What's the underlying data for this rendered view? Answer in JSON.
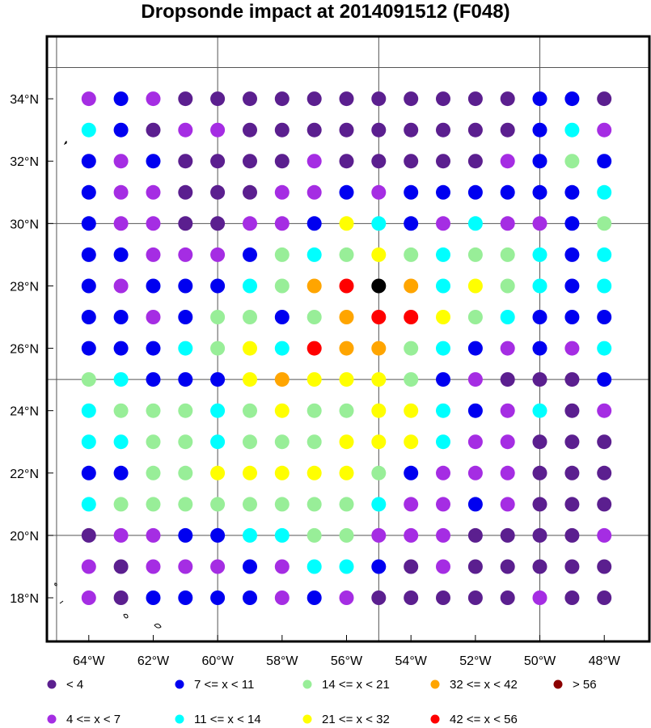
{
  "title": "Dropsonde impact at 2014091512 (F048)",
  "axes": {
    "x_ticks": [
      "64°W",
      "62°W",
      "60°W",
      "58°W",
      "56°W",
      "54°W",
      "52°W",
      "50°W",
      "48°W"
    ],
    "x_tick_values": [
      -64,
      -62,
      -60,
      -58,
      -56,
      -54,
      -52,
      -50,
      -48
    ],
    "y_ticks": [
      "34°N",
      "32°N",
      "30°N",
      "28°N",
      "26°N",
      "24°N",
      "22°N",
      "20°N",
      "18°N"
    ],
    "y_tick_values": [
      34,
      32,
      30,
      28,
      26,
      24,
      22,
      20,
      18
    ],
    "lon_range": [
      -65.3,
      -46.6
    ],
    "lat_range": [
      16.6,
      36.0
    ],
    "grid_lons": [
      -65,
      -60,
      -55,
      -50,
      -45
    ],
    "grid_lats": [
      35,
      30,
      25,
      20,
      15
    ],
    "grid": true
  },
  "colors": {
    "lt4": "#5b1f8f",
    "4to7": "#a52de3",
    "7to11": "#0000f0",
    "11to14": "#00ffff",
    "14to21": "#98ee98",
    "21to32": "#ffff00",
    "32to42": "#ffa500",
    "42to56": "#ff0000",
    "gt56": "#8b0000"
  },
  "legend": [
    {
      "key": "lt4",
      "label": "<  4"
    },
    {
      "key": "7to11",
      "label": "7 <= x < 11"
    },
    {
      "key": "14to21",
      "label": "14 <= x < 21"
    },
    {
      "key": "32to42",
      "label": "32 <= x < 42"
    },
    {
      "key": "gt56",
      "label": "> 56"
    },
    {
      "key": "4to7",
      "label": "4 <= x <  7"
    },
    {
      "key": "11to14",
      "label": "11 <= x < 14"
    },
    {
      "key": "21to32",
      "label": "21 <= x < 32"
    },
    {
      "key": "42to56",
      "label": "42 <= x < 56"
    }
  ],
  "chart_data": {
    "type": "scatter",
    "title": "Dropsonde impact at 2014091512 (F048)",
    "lon": [
      -64,
      -63,
      -62,
      -61,
      -60,
      -59,
      -58,
      -57,
      -56,
      -55,
      -54,
      -53,
      -52,
      -51,
      -50,
      -49,
      -48
    ],
    "lat": [
      34,
      33,
      32,
      31,
      30,
      29,
      28,
      27,
      26,
      25,
      24,
      23,
      22,
      21,
      20,
      19,
      18
    ],
    "categories": [
      "lt4",
      "4to7",
      "7to11",
      "11to14",
      "14to21",
      "21to32",
      "32to42",
      "42to56",
      "gt56"
    ],
    "codes": {
      "D": "lt4",
      "P": "4to7",
      "B": "7to11",
      "C": "11to14",
      "G": "14to21",
      "Y": "21to32",
      "O": "32to42",
      "R": "42to56",
      "M": "gt56"
    },
    "rows": [
      "PBPDDDDDDDDDDDBBD",
      "CBDPPDDDDDDDDDBCP",
      "BPBDDDDPDDDDDPBGB",
      "BPPDDDPPBPBBBBBBC",
      "BPPDDPPBYCBPCPPBG",
      "BBPPPBGCGYGCGGCBC",
      "BPBBBCGOREOCYGCBC",
      "BBPBGGBGORRYGCBBB",
      "BBBCGYCROOGCBPBPC",
      "GCBBBYOYYYGBPDDDB",
      "CGGGCGYGGYYCBPCDP",
      "CCGGCGGGYYYCPPDDD",
      "BBGGYYYYYGBPPPDDD",
      "CGGGGGGGGCPPBPDDD",
      "DPPBBCCGGPPPDDDDP",
      "PDPPPBPCCBDPDDDDD",
      "PDBBBBPBPDDDDDPDD"
    ]
  }
}
